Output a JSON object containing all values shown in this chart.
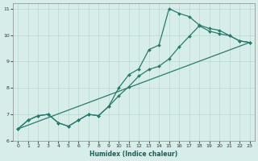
{
  "xlabel": "Humidex (Indice chaleur)",
  "xlim": [
    -0.5,
    23.5
  ],
  "ylim": [
    6,
    11.2
  ],
  "xticks": [
    0,
    1,
    2,
    3,
    4,
    5,
    6,
    7,
    8,
    9,
    10,
    11,
    12,
    13,
    14,
    15,
    16,
    17,
    18,
    19,
    20,
    21,
    22,
    23
  ],
  "yticks": [
    6,
    7,
    8,
    9,
    10,
    11
  ],
  "line_color": "#2a7a6d",
  "bg_color": "#d6ede9",
  "grid_color": "#b8d8d3",
  "line1_x": [
    0,
    1,
    2,
    3,
    4,
    5,
    6,
    7,
    8,
    9,
    10,
    11,
    12,
    13,
    14,
    15,
    16,
    17,
    18,
    19,
    20,
    21,
    22,
    23
  ],
  "line1_y": [
    6.45,
    6.78,
    6.95,
    7.0,
    6.68,
    6.55,
    6.78,
    7.0,
    6.95,
    7.3,
    7.7,
    8.05,
    8.45,
    8.7,
    8.82,
    9.1,
    9.55,
    9.95,
    10.35,
    10.15,
    10.05,
    9.98,
    9.78,
    9.72
  ],
  "line2_x": [
    0,
    1,
    2,
    3,
    4,
    5,
    6,
    7,
    8,
    9,
    10,
    11,
    12,
    13,
    14,
    15,
    16,
    17,
    18,
    19,
    20,
    21,
    22,
    23
  ],
  "line2_y": [
    6.45,
    6.78,
    6.95,
    7.0,
    6.68,
    6.55,
    6.78,
    7.0,
    6.95,
    7.3,
    8.0,
    8.5,
    8.72,
    9.45,
    9.62,
    11.0,
    10.82,
    10.7,
    10.38,
    10.25,
    10.18,
    9.98,
    9.78,
    9.72
  ],
  "line3_x": [
    0,
    23
  ],
  "line3_y": [
    6.45,
    9.72
  ]
}
